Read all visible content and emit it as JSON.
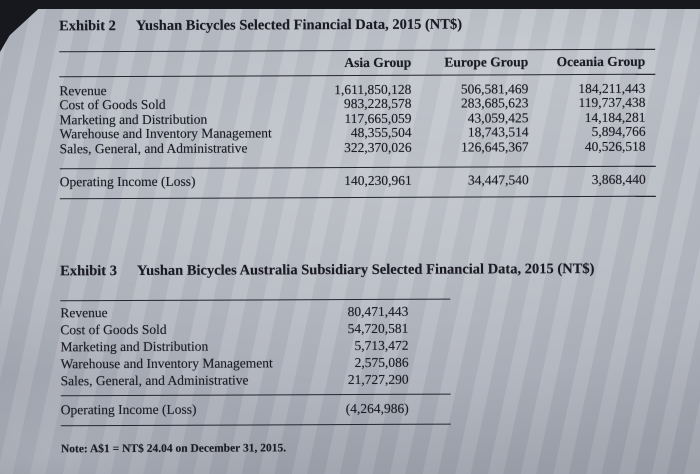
{
  "palette": {
    "paper": "#b3b7c0",
    "ink": "#1b1b25",
    "top_band": "#17181d",
    "rule": "#262630"
  },
  "exhibit2": {
    "label": "Exhibit 2",
    "title": "Yushan Bicycles Selected Financial Data, 2015 (NT$)",
    "columns": [
      "Asia Group",
      "Europe Group",
      "Oceania Group"
    ],
    "rows": [
      {
        "label": "Revenue",
        "values": [
          "1,611,850,128",
          "506,581,469",
          "184,211,443"
        ]
      },
      {
        "label": "Cost of Goods Sold",
        "values": [
          "983,228,578",
          "283,685,623",
          "119,737,438"
        ]
      },
      {
        "label": "Marketing and Distribution",
        "values": [
          "117,665,059",
          "43,059,425",
          "14,184,281"
        ]
      },
      {
        "label": "Warehouse and Inventory Management",
        "values": [
          "48,355,504",
          "18,743,514",
          "5,894,766"
        ]
      },
      {
        "label": "Sales, General, and Administrative",
        "values": [
          "322,370,026",
          "126,645,367",
          "40,526,518"
        ]
      }
    ],
    "total_row": {
      "label": "Operating Income (Loss)",
      "values": [
        "140,230,961",
        "34,447,540",
        "3,868,440"
      ]
    }
  },
  "exhibit3": {
    "label": "Exhibit 3",
    "title": "Yushan Bicycles Australia Subsidiary Selected Financial Data, 2015 (NT$)",
    "rows": [
      {
        "label": "Revenue",
        "value": "80,471,443"
      },
      {
        "label": "Cost of Goods Sold",
        "value": "54,720,581"
      },
      {
        "label": "Marketing and Distribution",
        "value": "5,713,472"
      },
      {
        "label": "Warehouse and Inventory Management",
        "value": "2,575,086"
      },
      {
        "label": "Sales, General, and Administrative",
        "value": "21,727,290"
      }
    ],
    "total_row": {
      "label": "Operating Income (Loss)",
      "value": "(4,264,986)"
    }
  },
  "note": "Note: A$1 = NT$ 24.04 on December 31, 2015."
}
